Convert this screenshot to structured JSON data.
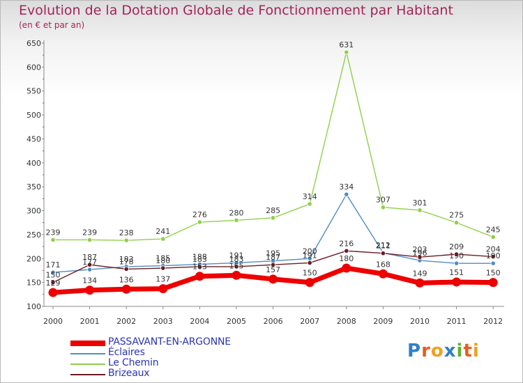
{
  "title": "Evolution de la Dotation Globale de Fonctionnement par Habitant",
  "subtitle": "(en € et par an)",
  "logo": {
    "text": "Proxiti",
    "letters": [
      {
        "ch": "P",
        "color": "#2f7fc8"
      },
      {
        "ch": "r",
        "color": "#e85c1c"
      },
      {
        "ch": "o",
        "color": "#f0a020"
      },
      {
        "ch": "x",
        "color": "#2f7fc8"
      },
      {
        "ch": "i",
        "color": "#62b030"
      },
      {
        "ch": "t",
        "color": "#e85c1c"
      },
      {
        "ch": "i",
        "color": "#f0a020"
      }
    ]
  },
  "chart_data": {
    "type": "line",
    "x": [
      "2000",
      "2001",
      "2002",
      "2003",
      "2004",
      "2005",
      "2006",
      "2007",
      "2008",
      "2009",
      "2010",
      "2011",
      "2012"
    ],
    "ylim": [
      100,
      650
    ],
    "yticks": [
      "100",
      "150",
      "200",
      "250",
      "300",
      "350",
      "400",
      "450",
      "500",
      "550",
      "600",
      "650"
    ],
    "grid": false,
    "legend_position": "bottom-left",
    "series": [
      {
        "name": "PASSAVANT-EN-ARGONNE",
        "color": "#ee0000",
        "values": [
          129,
          134,
          136,
          137,
          163,
          165,
          157,
          150,
          180,
          168,
          149,
          151,
          150
        ]
      },
      {
        "name": "Éclaires",
        "color": "#4f8cc4",
        "values": [
          171,
          177,
          183,
          185,
          188,
          191,
          195,
          200,
          334,
          212,
          196,
          190,
          190
        ]
      },
      {
        "name": "Le Chemin",
        "color": "#8ed048",
        "values": [
          239,
          239,
          238,
          241,
          276,
          280,
          285,
          314,
          631,
          307,
          301,
          275,
          245
        ]
      },
      {
        "name": "Brizeaux",
        "color": "#6a1c22",
        "values": [
          150,
          187,
          178,
          180,
          183,
          183,
          187,
          191,
          216,
          211,
          203,
          209,
          204
        ]
      }
    ]
  }
}
